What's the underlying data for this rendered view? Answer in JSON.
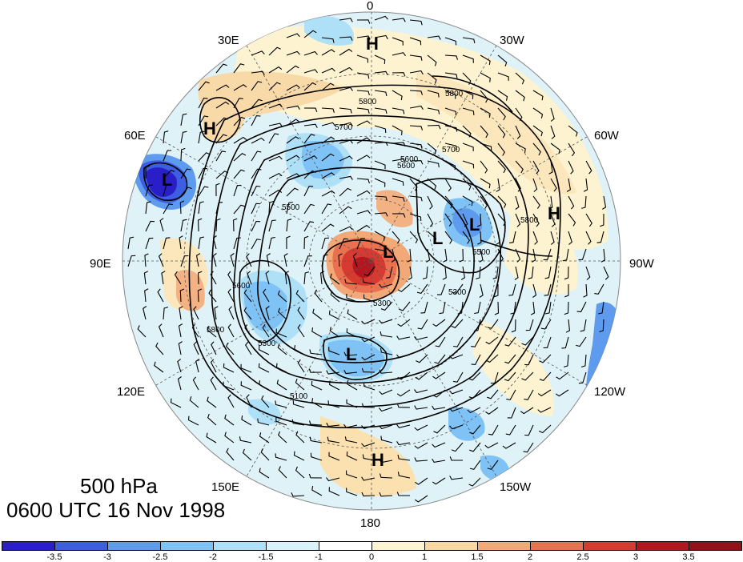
{
  "title": {
    "level": "500 hPa",
    "time": "0600 UTC 16 Nov 1998"
  },
  "longitude_labels": {
    "lon_0": "0",
    "lon_30w": "30W",
    "lon_60w": "60W",
    "lon_90w": "90W",
    "lon_120w": "120W",
    "lon_150w": "150W",
    "lon_180": "180",
    "lon_150e": "150E",
    "lon_120e": "120E",
    "lon_90e": "90E",
    "lon_60e": "60E",
    "lon_30e": "30E"
  },
  "pressure_centers": [
    "H",
    "H",
    "L",
    "H",
    "L",
    "L",
    "L",
    "L",
    "H"
  ],
  "contour_labels": [
    "5800",
    "5700",
    "5600",
    "5500",
    "5300",
    "5700",
    "5600",
    "5800",
    "5800",
    "5300",
    "5500",
    "5600",
    "5800",
    "5300",
    "5100"
  ],
  "colorbar": {
    "tick_labels": [
      "-3.5",
      "-3",
      "-2.5",
      "-2",
      "-1.5",
      "-1",
      "0",
      "1",
      "1.5",
      "2",
      "2.5",
      "3",
      "3.5"
    ],
    "colors": [
      "#2a1ec8",
      "#3d5ee0",
      "#5e9aee",
      "#7fc2f5",
      "#aee0f8",
      "#d8f2fb",
      "#ffffff",
      "#fdf4d2",
      "#f8d7a0",
      "#f3a877",
      "#e9714f",
      "#d63a31",
      "#b3161e",
      "#96101a"
    ]
  }
}
